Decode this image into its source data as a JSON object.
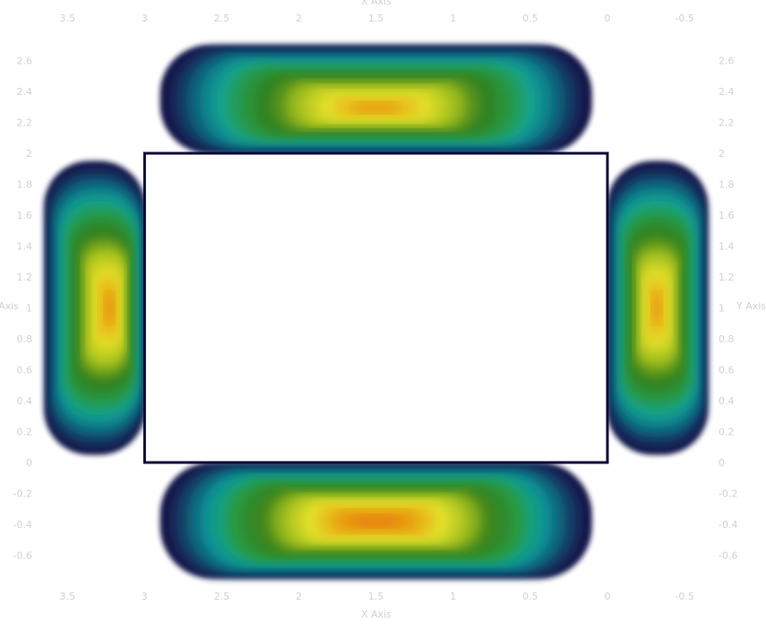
{
  "chart_data": {
    "type": "heatmap",
    "title": "",
    "xlabel": "X Axis",
    "ylabel": "Y Axis",
    "x_reversed": true,
    "xlim": [
      -0.75,
      3.95
    ],
    "ylim": [
      -0.8,
      2.75
    ],
    "x_ticks": [
      {
        "value": 3.5,
        "label": "3.5"
      },
      {
        "value": 3,
        "label": "3"
      },
      {
        "value": 2.5,
        "label": "2.5"
      },
      {
        "value": 2,
        "label": "2"
      },
      {
        "value": 1.5,
        "label": "1.5"
      },
      {
        "value": 1,
        "label": "1"
      },
      {
        "value": 0.5,
        "label": "0.5"
      },
      {
        "value": 0,
        "label": "0"
      },
      {
        "value": -0.5,
        "label": "-0.5"
      }
    ],
    "y_ticks": [
      {
        "value": 2.6,
        "label": "2.6"
      },
      {
        "value": 2.4,
        "label": "2.4"
      },
      {
        "value": 2.2,
        "label": "2.2"
      },
      {
        "value": 2,
        "label": "2"
      },
      {
        "value": 1.8,
        "label": "1.8"
      },
      {
        "value": 1.6,
        "label": "1.6"
      },
      {
        "value": 1.4,
        "label": "1.4"
      },
      {
        "value": 1.2,
        "label": "1.2"
      },
      {
        "value": 1,
        "label": "1"
      },
      {
        "value": 0.8,
        "label": "0.8"
      },
      {
        "value": 0.6,
        "label": "0.6"
      },
      {
        "value": 0.4,
        "label": "0.4"
      },
      {
        "value": 0.2,
        "label": "0.2"
      },
      {
        "value": 0,
        "label": "0"
      },
      {
        "value": -0.2,
        "label": "-0.2"
      },
      {
        "value": -0.4,
        "label": "-0.4"
      },
      {
        "value": -0.6,
        "label": "-0.6"
      }
    ],
    "hole": {
      "x0": 0,
      "x1": 3,
      "y0": 0,
      "y1": 2
    },
    "lobes": [
      {
        "name": "top",
        "x0": 0.1,
        "x1": 2.9,
        "y0": 2.0,
        "y1": 2.7,
        "cx": 1.5,
        "cy": 2.29,
        "rx": 0.82,
        "ry": 0.12,
        "peak": 0.78
      },
      {
        "name": "bottom",
        "x0": 0.1,
        "x1": 2.9,
        "y0": -0.75,
        "y1": 0.0,
        "cx": 1.5,
        "cy": -0.38,
        "rx": 0.92,
        "ry": 0.13,
        "peak": 0.86
      },
      {
        "name": "left",
        "x0": 3.0,
        "x1": 3.65,
        "y0": 0.05,
        "y1": 1.95,
        "cx": 3.22,
        "cy": 1.0,
        "rx": 0.12,
        "ry": 0.42,
        "peak": 0.8
      },
      {
        "name": "right",
        "x0": -0.65,
        "x1": 0.0,
        "y0": 0.05,
        "y1": 1.95,
        "cx": -0.32,
        "cy": 1.0,
        "rx": 0.11,
        "ry": 0.4,
        "peak": 0.78
      }
    ],
    "colormap": [
      "#1a0b4f",
      "#0f5a74",
      "#0fa3a0",
      "#2a9a3f",
      "#2f7a1c",
      "#a6c21a",
      "#e6e02a",
      "#e8a010",
      "#e67a08",
      "#b86a0a"
    ],
    "grid": false,
    "legend": "none"
  }
}
